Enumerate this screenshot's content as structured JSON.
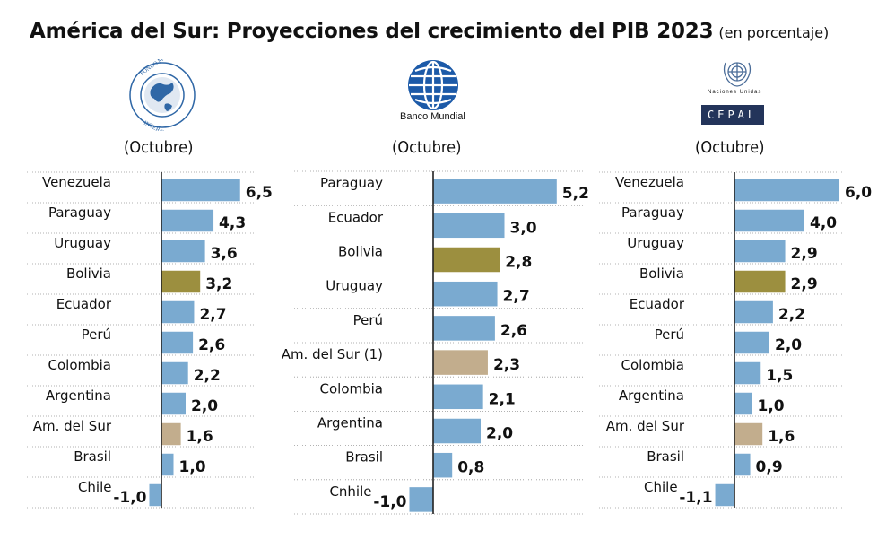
{
  "title": "América del Sur: Proyecciones del crecimiento del PIB 2023",
  "subtitle": "(en porcentaje)",
  "colors": {
    "country": "#7aaad0",
    "bolivia": "#9c8f3f",
    "region": "#c2ad8d",
    "axis": "#222222",
    "grid": "#999999",
    "un_blue": "#2f67a6",
    "cepal_navy": "#23345a"
  },
  "logos": {
    "imf": {
      "icon": "imf-seal-icon",
      "text": "FONDO MONETARIO INTERNACIONAL"
    },
    "wb": {
      "icon": "world-bank-globe-icon",
      "text": "Banco Mundial"
    },
    "un": {
      "icon": "un-emblem-icon",
      "text": "Naciones Unidas"
    },
    "cepal": {
      "text": "CEPAL"
    }
  },
  "chart_data": [
    {
      "type": "bar",
      "orientation": "horizontal",
      "subtitle": "(Octubre)",
      "categories": [
        "Venezuela",
        "Paraguay",
        "Uruguay",
        "Bolivia",
        "Ecuador",
        "Perú",
        "Colombia",
        "Argentina",
        "Am. del Sur",
        "Brasil",
        "Chile"
      ],
      "values": [
        6.5,
        4.3,
        3.6,
        3.2,
        2.7,
        2.6,
        2.2,
        2.0,
        1.6,
        1.0,
        -1.0
      ],
      "labels": [
        "6,5",
        "4,3",
        "3,6",
        "3,2",
        "2,7",
        "2,6",
        "2,2",
        "2,0",
        "1,6",
        "1,0",
        "-1,0"
      ],
      "highlight": {
        "Bolivia": "bolivia",
        "Am. del Sur": "region"
      }
    },
    {
      "type": "bar",
      "orientation": "horizontal",
      "subtitle": "(Octubre)",
      "categories": [
        "Paraguay",
        "Ecuador",
        "Bolivia",
        "Uruguay",
        "Perú",
        "Am. del Sur (1)",
        "Colombia",
        "Argentina",
        "Brasil",
        "Cnhile"
      ],
      "values": [
        5.2,
        3.0,
        2.8,
        2.7,
        2.6,
        2.3,
        2.1,
        2.0,
        0.8,
        -1.0
      ],
      "labels": [
        "5,2",
        "3,0",
        "2,8",
        "2,7",
        "2,6",
        "2,3",
        "2,1",
        "2,0",
        "0,8",
        "-1,0"
      ],
      "highlight": {
        "Bolivia": "bolivia",
        "Am. del Sur (1)": "region"
      }
    },
    {
      "type": "bar",
      "orientation": "horizontal",
      "subtitle": "(Octubre)",
      "categories": [
        "Venezuela",
        "Paraguay",
        "Uruguay",
        "Bolivia",
        "Ecuador",
        "Perú",
        "Colombia",
        "Argentina",
        "Am. del Sur",
        "Brasil",
        "Chile"
      ],
      "values": [
        6.0,
        4.0,
        2.9,
        2.9,
        2.2,
        2.0,
        1.5,
        1.0,
        1.6,
        0.9,
        -1.1
      ],
      "labels": [
        "6,0",
        "4,0",
        "2,9",
        "2,9",
        "2,2",
        "2,0",
        "1,5",
        "1,0",
        "1,6",
        "0,9",
        "-1,1"
      ],
      "highlight": {
        "Bolivia": "bolivia",
        "Am. del Sur": "region"
      }
    }
  ]
}
